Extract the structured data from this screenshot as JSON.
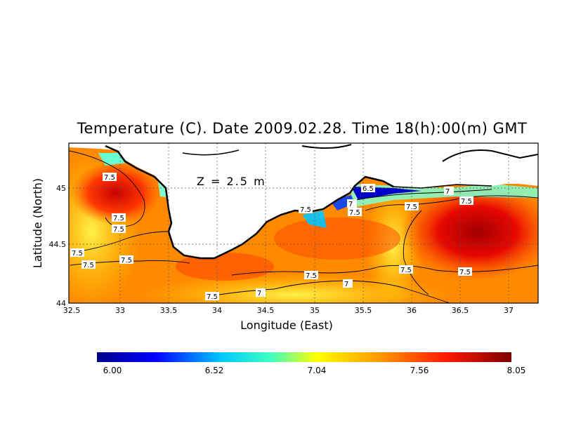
{
  "title": "Temperature (C). Date 2009.02.28. Time 18(h):00(m) GMT",
  "depth_label": "Z = 2.5 m",
  "axes": {
    "xlabel": "Longitude (East)",
    "ylabel": "Latitude (North)",
    "xticks": [
      "32.5",
      "33",
      "33.5",
      "34",
      "34.5",
      "35",
      "35.5",
      "36",
      "36.5",
      "37"
    ],
    "yticks": [
      "44",
      "44.5",
      "45"
    ],
    "xlim": [
      32.5,
      37.3
    ],
    "ylim": [
      44.0,
      45.45
    ]
  },
  "contour_labels": [
    "7.5",
    "7.5",
    "7.5",
    "7.5",
    "7.5",
    "7.5",
    "7.5",
    "7.5",
    "7",
    "6.5",
    "7.5",
    "7.5",
    "7",
    "7.5",
    "7.5",
    "7",
    "7.5",
    "7.5"
  ],
  "colorbar": {
    "ticks": [
      "6.00",
      "6.52",
      "7.04",
      "7.56",
      "8.05"
    ],
    "range": [
      6.0,
      8.05
    ]
  },
  "colors": {
    "cold": "#00008b",
    "mid": "#ffff00",
    "warm": "#7f0000",
    "land": "#ffffff"
  }
}
